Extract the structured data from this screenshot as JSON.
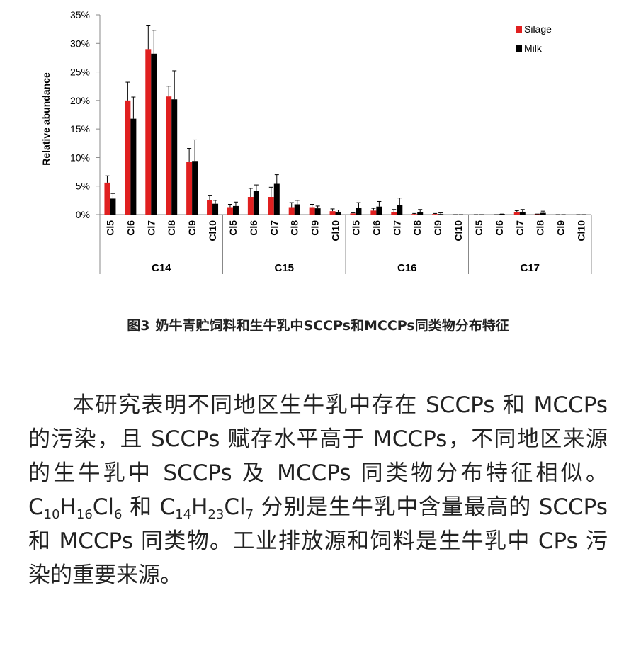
{
  "chart_data": {
    "type": "bar",
    "ylabel": "Relative abundance",
    "categories": [
      "Cl5",
      "Cl6",
      "Cl7",
      "Cl8",
      "Cl9",
      "Cl10",
      "Cl5",
      "Cl6",
      "Cl7",
      "Cl8",
      "Cl9",
      "Cl10",
      "Cl5",
      "Cl6",
      "Cl7",
      "Cl8",
      "Cl9",
      "Cl10",
      "Cl5",
      "Cl6",
      "Cl7",
      "Cl8",
      "Cl9",
      "Cl10"
    ],
    "groups": [
      "C14",
      "C15",
      "C16",
      "C17"
    ],
    "series": [
      {
        "name": "Silage",
        "color": "#e02020",
        "values": [
          5.6,
          20.0,
          29.0,
          20.7,
          9.3,
          2.6,
          1.3,
          3.1,
          3.1,
          1.3,
          1.3,
          0.6,
          0.2,
          0.7,
          0.4,
          0.1,
          0.1,
          0,
          0,
          0,
          0.4,
          0.1,
          0,
          0
        ],
        "errors": [
          1.2,
          3.2,
          4.2,
          1.8,
          2.3,
          0.8,
          0.5,
          1.5,
          1.7,
          0.8,
          0.5,
          0.4,
          0.1,
          0.4,
          0.5,
          0.1,
          0.1,
          0,
          0,
          0,
          0.3,
          0,
          0,
          0
        ]
      },
      {
        "name": "Milk",
        "color": "#000000",
        "values": [
          2.8,
          16.8,
          28.2,
          20.2,
          9.4,
          1.9,
          1.5,
          4.1,
          5.4,
          1.8,
          1.1,
          0.5,
          1.2,
          1.4,
          1.7,
          0.4,
          0.1,
          0,
          0,
          0.1,
          0.5,
          0.3,
          0,
          0
        ],
        "errors": [
          0.9,
          3.8,
          4.1,
          5.0,
          3.7,
          0.6,
          0.7,
          1.1,
          1.6,
          0.7,
          0.4,
          0.3,
          0.9,
          0.9,
          1.2,
          0.5,
          0.2,
          0,
          0,
          0,
          0.4,
          0.3,
          0,
          0
        ]
      }
    ],
    "ylim": [
      0,
      35
    ],
    "yticks": [
      {
        "value": 0,
        "label": "0%"
      },
      {
        "value": 5,
        "label": "5%"
      },
      {
        "value": 10,
        "label": "10%"
      },
      {
        "value": 15,
        "label": "15%"
      },
      {
        "value": 20,
        "label": "20%"
      },
      {
        "value": 25,
        "label": "25%"
      },
      {
        "value": 30,
        "label": "30%"
      },
      {
        "value": 35,
        "label": "35%"
      }
    ],
    "grid": false,
    "legend": "upper right"
  },
  "caption": {
    "label": "图3",
    "text": "奶牛青贮饲料和生牛乳中SCCPs和MCCPs同类物分布特征"
  },
  "paragraph": [
    "本研究表明不同地区生牛乳中存在 SCCPs 和 MCCPs 的污染，且 SCCPs 赋存水平高于 MCCPs，不同地区来源的生牛乳中 SCCPs 及 MCCPs 同类物分布特征相似。C",
    "10",
    "H",
    "16",
    "Cl",
    "6",
    " 和 C",
    "14",
    "H",
    "23",
    "Cl",
    "7",
    " 分别是生牛乳中含量最高的 SCCPs 和 MCCPs 同类物。工业排放源和饲料是生牛乳中 CPs 污染的重要来源。"
  ]
}
